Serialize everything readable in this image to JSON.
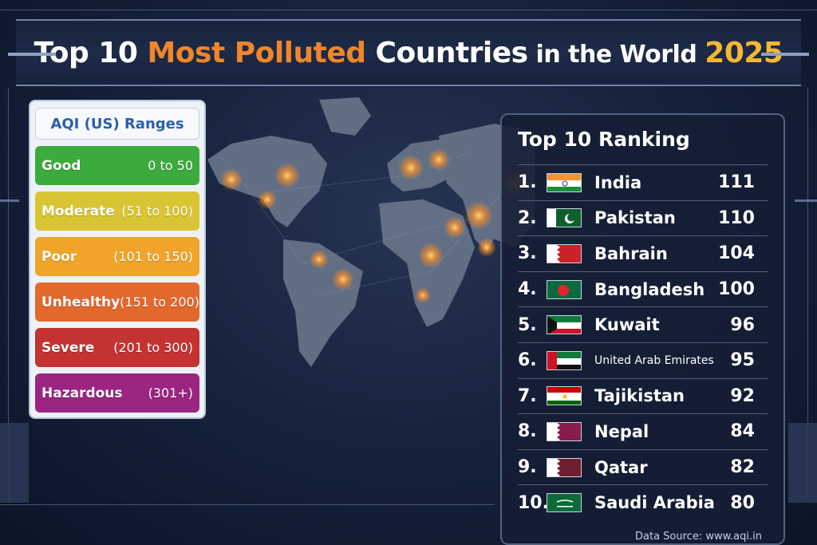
{
  "header": {
    "title_part1": "Top 10 ",
    "title_part2": "Most Polluted",
    "title_part3": " Countries",
    "title_part4": " in the World ",
    "title_year": "2025",
    "colors": {
      "accent_orange": "#f0852a",
      "accent_gold": "#f5b833"
    }
  },
  "legend": {
    "title": "AQI (US) Ranges",
    "items": [
      {
        "label": "Good",
        "range": "0 to 50",
        "color": "#3cab3e"
      },
      {
        "label": "Moderate",
        "range": "(51 to 100)",
        "color": "#d9c534"
      },
      {
        "label": "Poor",
        "range": "(101 to 150)",
        "color": "#f0a52a"
      },
      {
        "label": "Unhealthy",
        "range": "(151 to 200)",
        "color": "#e2682c"
      },
      {
        "label": "Severe",
        "range": "(201 to 300)",
        "color": "#c43232"
      },
      {
        "label": "Hazardous",
        "range": "(301+)",
        "color": "#9b2580"
      }
    ]
  },
  "ranking": {
    "title": "Top 10 Ranking",
    "rows": [
      {
        "rank": "1.",
        "country": "India",
        "aqi": "111",
        "flag": "india-flag-icon"
      },
      {
        "rank": "2.",
        "country": "Pakistan",
        "aqi": "110",
        "flag": "pakistan-flag-icon"
      },
      {
        "rank": "3.",
        "country": "Bahrain",
        "aqi": "104",
        "flag": "bahrain-flag-icon"
      },
      {
        "rank": "4.",
        "country": "Bangladesh",
        "aqi": "100",
        "flag": "bangladesh-flag-icon"
      },
      {
        "rank": "5.",
        "country": "Kuwait",
        "aqi": "96",
        "flag": "kuwait-flag-icon"
      },
      {
        "rank": "6.",
        "country": "United Arab Emirates",
        "aqi": "95",
        "flag": "uae-flag-icon"
      },
      {
        "rank": "7.",
        "country": "Tajikistan",
        "aqi": "92",
        "flag": "tajikistan-flag-icon"
      },
      {
        "rank": "8.",
        "country": "Nepal",
        "aqi": "84",
        "flag": "nepal-flag-icon"
      },
      {
        "rank": "9.",
        "country": "Qatar",
        "aqi": "82",
        "flag": "qatar-flag-icon"
      },
      {
        "rank": "10.",
        "country": "Saudi Arabia",
        "aqi": "80",
        "flag": "saudi-arabia-flag-icon"
      }
    ]
  },
  "source": "Data Source: www.aqi.in",
  "map": {
    "icon": "world-map-icon"
  }
}
